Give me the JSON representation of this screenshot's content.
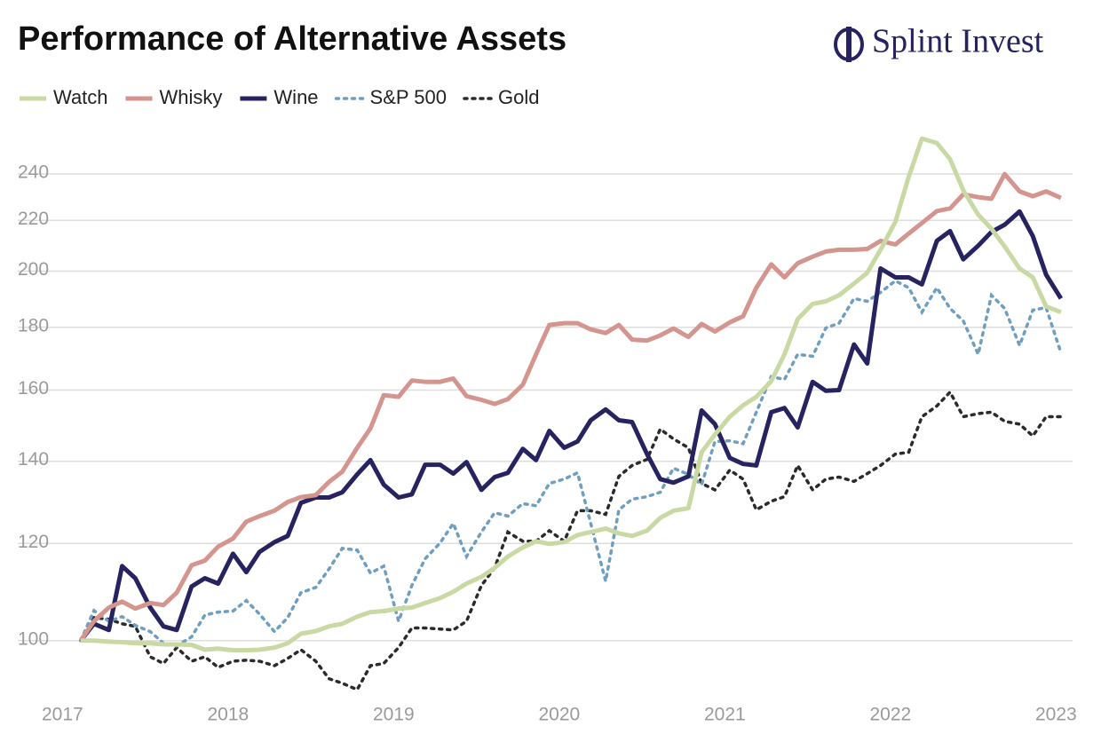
{
  "chart_data": {
    "type": "line",
    "title": "Performance of Alternative Assets",
    "brand": "Splint Invest",
    "log_scale": true,
    "grid": true,
    "legend": "top-left",
    "xlim": [
      2016.73,
      2023.1
    ],
    "xticks": [
      2017,
      2018,
      2019,
      2020,
      2021,
      2022,
      2023
    ],
    "ylim": [
      90,
      260
    ],
    "yticks": [
      100,
      120,
      140,
      160,
      180,
      200,
      220,
      240
    ],
    "x": [
      2017.11,
      2017.19,
      2017.28,
      2017.36,
      2017.44,
      2017.53,
      2017.61,
      2017.69,
      2017.78,
      2017.86,
      2017.94,
      2018.03,
      2018.11,
      2018.19,
      2018.28,
      2018.36,
      2018.44,
      2018.53,
      2018.61,
      2018.69,
      2018.78,
      2018.86,
      2018.94,
      2019.03,
      2019.11,
      2019.19,
      2019.28,
      2019.36,
      2019.44,
      2019.53,
      2019.61,
      2019.69,
      2019.78,
      2019.86,
      2019.94,
      2020.03,
      2020.11,
      2020.19,
      2020.28,
      2020.36,
      2020.44,
      2020.53,
      2020.61,
      2020.69,
      2020.78,
      2020.86,
      2020.94,
      2021.03,
      2021.11,
      2021.19,
      2021.28,
      2021.36,
      2021.44,
      2021.53,
      2021.61,
      2021.69,
      2021.78,
      2021.86,
      2021.94,
      2022.03,
      2022.11,
      2022.19,
      2022.28,
      2022.36,
      2022.44,
      2022.53,
      2022.61,
      2022.69,
      2022.78,
      2022.86,
      2022.94,
      2023.03
    ],
    "series": [
      {
        "name": "Watch",
        "color": "#c9d9a4",
        "style": "solid",
        "values": [
          100,
          100,
          99.8,
          99.7,
          99.5,
          99.5,
          99.3,
          99.3,
          99.2,
          98.3,
          98.5,
          98.2,
          98.2,
          98.3,
          98.7,
          99.5,
          101.3,
          101.8,
          102.7,
          103.2,
          104.6,
          105.5,
          105.7,
          106.2,
          106.4,
          107.3,
          108.3,
          109.6,
          111.3,
          112.7,
          114.6,
          117.1,
          119.1,
          120.5,
          119.9,
          120.3,
          121.9,
          122.6,
          123.4,
          122.3,
          121.7,
          122.9,
          125.9,
          127.6,
          128.2,
          142.4,
          147.2,
          152.2,
          155.5,
          158,
          162.7,
          171.1,
          182.8,
          188.1,
          189,
          191.2,
          195.4,
          199.4,
          208.2,
          219.4,
          238.7,
          256.5,
          254.4,
          246.8,
          232.8,
          222.4,
          216.6,
          209.5,
          201,
          197.7,
          187.2,
          185.2
        ]
      },
      {
        "name": "Whisky",
        "color": "#d4958f",
        "style": "solid",
        "values": [
          100,
          103.7,
          106.4,
          107.6,
          106.2,
          107.3,
          106.9,
          109.4,
          115.2,
          116.2,
          119.3,
          121.1,
          125,
          126.3,
          127.6,
          129.7,
          130.9,
          131.4,
          134.7,
          137.3,
          143.6,
          148.9,
          158.5,
          158,
          162.9,
          162.5,
          162.5,
          163.5,
          158.2,
          157.1,
          155.9,
          157.3,
          161.6,
          171.1,
          180.8,
          181.4,
          181.4,
          179.3,
          178.1,
          180.8,
          175.9,
          175.6,
          177.3,
          179.6,
          176.8,
          181.1,
          178.6,
          181.7,
          183.8,
          193.9,
          202.6,
          197.7,
          203,
          205.5,
          207.5,
          208.2,
          208.2,
          208.5,
          211.7,
          210.3,
          214.6,
          218.9,
          223.9,
          225,
          231,
          229.8,
          229.1,
          240,
          232.3,
          230.2,
          232.3,
          229.5
        ]
      },
      {
        "name": "Wine",
        "color": "#262360",
        "style": "solid",
        "values": [
          100,
          103.2,
          102,
          115,
          112.4,
          106.4,
          102.7,
          102,
          110.7,
          112.4,
          111.3,
          117.7,
          113.7,
          118.1,
          120.3,
          121.7,
          129.5,
          130.8,
          130.8,
          132.1,
          136.6,
          140.3,
          134,
          130.8,
          131.6,
          139.1,
          139.1,
          136.8,
          139.8,
          132.7,
          135.9,
          137,
          143.3,
          140.3,
          148.2,
          143.6,
          145.3,
          151.2,
          154.3,
          151.2,
          150.7,
          141.9,
          135.4,
          134.5,
          136.1,
          154,
          150.1,
          140.9,
          139.3,
          138.9,
          153.5,
          154.7,
          149.2,
          162.5,
          159.8,
          160,
          174.3,
          168.2,
          201,
          197.7,
          197.7,
          195.1,
          211.7,
          215.6,
          204.5,
          209.8,
          215.3,
          218.2,
          223.7,
          213.6,
          198.7,
          190
        ]
      },
      {
        "name": "S&P 500",
        "color": "#6e9ec0",
        "style": "dotted",
        "values": [
          100,
          105.8,
          103.7,
          104.6,
          102.9,
          101.7,
          99.5,
          99,
          100.7,
          104.9,
          105.5,
          105.7,
          107.8,
          105.1,
          101.7,
          104.4,
          109.4,
          110.5,
          114.4,
          118.9,
          118.5,
          113.5,
          115,
          103.7,
          110.9,
          116.6,
          120.1,
          124.6,
          117.1,
          122.6,
          127.1,
          126.3,
          129.3,
          128.8,
          134.3,
          135.4,
          137,
          124.6,
          111.8,
          127.8,
          130.4,
          131,
          132.1,
          138.2,
          136.6,
          134,
          145.3,
          145.5,
          144.7,
          153.5,
          164.1,
          163.2,
          171.1,
          170.5,
          179.8,
          181.4,
          190,
          189,
          192.2,
          196.4,
          193.9,
          185.2,
          193.9,
          186.5,
          182.2,
          171.1,
          191.2,
          186.5,
          174,
          185.9,
          186.8,
          171.6
        ]
      },
      {
        "name": "Gold",
        "color": "#2b2b2b",
        "style": "dotted",
        "values": [
          100,
          104.4,
          104.1,
          103.2,
          102.7,
          97,
          95.8,
          98.7,
          96.2,
          97,
          95.1,
          96.2,
          96.4,
          96.2,
          95.4,
          96.7,
          98.3,
          96.2,
          93.1,
          92.3,
          91.2,
          95.4,
          95.8,
          98.7,
          102.4,
          102.4,
          102.2,
          102,
          103.7,
          110.9,
          114.6,
          122.6,
          120.5,
          120.5,
          122.9,
          120.5,
          127.6,
          127.6,
          126.7,
          136.1,
          138.9,
          140.5,
          148.7,
          146,
          143.6,
          134.3,
          132.7,
          137.7,
          135.4,
          127.8,
          129.9,
          131,
          138.9,
          132.7,
          135.4,
          135.9,
          134.8,
          136.8,
          138.9,
          141.9,
          142.4,
          152.2,
          155.3,
          159.4,
          152.2,
          153.1,
          153.5,
          150.9,
          150.1,
          146.8,
          152.2,
          152.2
        ]
      }
    ]
  }
}
